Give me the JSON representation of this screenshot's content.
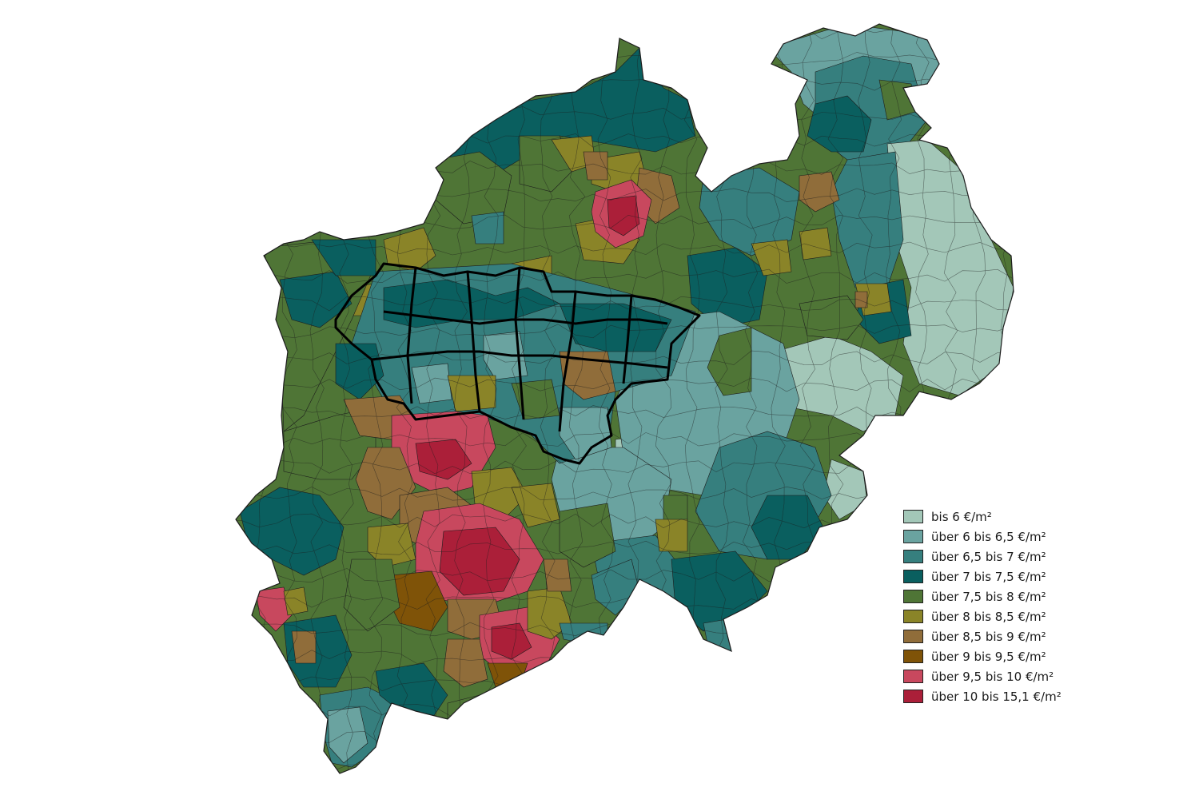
{
  "map": {
    "region_colors": {
      "c1": "#a3c7b8",
      "c2": "#6aa3a0",
      "c3": "#367f7e",
      "c4": "#0a5f5f",
      "c5": "#4f7536",
      "c6": "#8a8428",
      "c7": "#906d3a",
      "c8": "#7f5308",
      "c9": "#c8485e",
      "c10": "#ab1f39"
    },
    "border_color": "#1c1c1c",
    "highlight_border_color": "#000000"
  },
  "legend": {
    "items": [
      {
        "label": "bis 6 €/m²",
        "color": "#a3c7b8"
      },
      {
        "label": "über 6 bis 6,5 €/m²",
        "color": "#6aa3a0"
      },
      {
        "label": "über 6,5 bis 7 €/m²",
        "color": "#367f7e"
      },
      {
        "label": "über 7 bis 7,5 €/m²",
        "color": "#0a5f5f"
      },
      {
        "label": "über 7,5 bis 8 €/m²",
        "color": "#4f7536"
      },
      {
        "label": "über 8 bis 8,5 €/m²",
        "color": "#8a8428"
      },
      {
        "label": "über 8,5 bis 9 €/m²",
        "color": "#906d3a"
      },
      {
        "label": "über 9 bis 9,5 €/m²",
        "color": "#7f5308"
      },
      {
        "label": "über 9,5 bis 10 €/m²",
        "color": "#c8485e"
      },
      {
        "label": "über 10 bis 15,1 €/m²",
        "color": "#ab1f39"
      }
    ]
  }
}
